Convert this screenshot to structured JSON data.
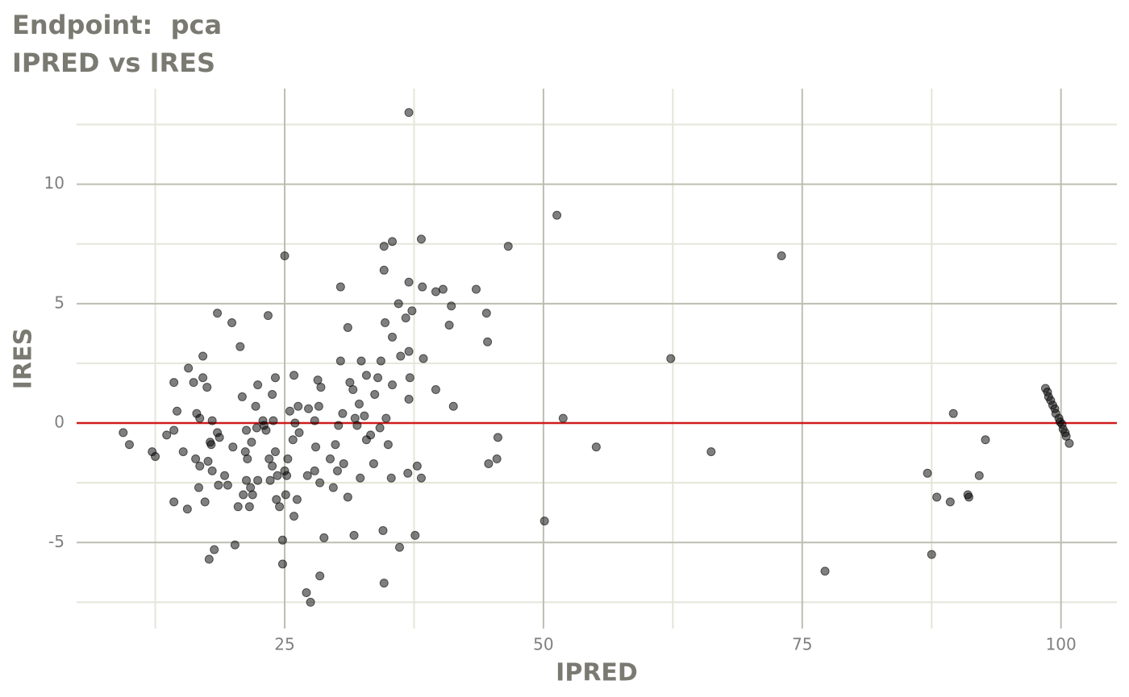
{
  "chart_data": {
    "type": "scatter",
    "title": "Endpoint:  pca",
    "subtitle": "IPRED vs IRES",
    "x_label": "IPRED",
    "y_label": "IRES",
    "xlim": [
      4.9,
      105.4
    ],
    "ylim": [
      -8.6,
      14.0
    ],
    "xticks": [
      25,
      50,
      75,
      100
    ],
    "yticks": [
      -5,
      0,
      5,
      10
    ],
    "xminor": [
      12.5,
      37.5,
      62.5,
      87.5
    ],
    "yminor": [
      -7.5,
      -2.5,
      2.5,
      7.5,
      12.5
    ],
    "hline": 0,
    "hline_color": "#d01c1c",
    "color": "#000000",
    "grid": true,
    "x": [
      9.4,
      10.0,
      12.2,
      12.5,
      13.6,
      14.3,
      14.3,
      14.6,
      14.3,
      15.2,
      15.6,
      15.7,
      16.2,
      16.4,
      16.5,
      16.7,
      16.8,
      16.8,
      17.1,
      17.1,
      17.3,
      17.5,
      17.6,
      17.7,
      17.8,
      17.9,
      18.0,
      18.0,
      18.2,
      18.5,
      18.5,
      18.6,
      18.7,
      19.2,
      19.5,
      19.9,
      20.0,
      20.2,
      20.5,
      20.7,
      20.9,
      21.0,
      21.2,
      21.3,
      21.3,
      21.4,
      21.6,
      21.7,
      21.8,
      21.9,
      22.2,
      22.3,
      22.4,
      22.4,
      22.9,
      23.0,
      23.2,
      23.4,
      23.5,
      23.6,
      23.8,
      23.8,
      23.9,
      24.1,
      24.1,
      24.2,
      24.3,
      24.5,
      24.8,
      24.8,
      25.0,
      25.0,
      25.1,
      25.2,
      25.3,
      25.5,
      25.8,
      25.9,
      25.9,
      26.0,
      26.2,
      26.3,
      26.4,
      27.1,
      27.2,
      27.3,
      27.5,
      27.9,
      27.9,
      28.0,
      28.2,
      28.3,
      28.4,
      28.5,
      28.4,
      28.8,
      29.4,
      29.7,
      29.9,
      30.1,
      30.2,
      30.4,
      30.4,
      30.6,
      30.7,
      31.1,
      31.1,
      31.3,
      31.6,
      31.7,
      31.8,
      32.0,
      32.2,
      32.3,
      32.4,
      32.7,
      32.9,
      32.9,
      33.3,
      33.6,
      33.7,
      34.0,
      34.2,
      34.3,
      34.5,
      34.6,
      34.6,
      34.6,
      34.7,
      34.8,
      35.0,
      35.3,
      35.4,
      35.4,
      35.4,
      36.0,
      36.1,
      36.2,
      36.7,
      36.9,
      37.0,
      37.0,
      37.0,
      37.0,
      37.1,
      37.3,
      37.6,
      37.8,
      38.2,
      38.2,
      38.3,
      38.4,
      39.6,
      39.6,
      40.3,
      40.9,
      41.1,
      41.3,
      43.5,
      44.5,
      44.6,
      44.7,
      45.5,
      45.6,
      46.6,
      50.1,
      51.3,
      51.9,
      55.1,
      62.3,
      66.2,
      73.0,
      77.2,
      87.1,
      87.5,
      88.0,
      89.3,
      89.6,
      91.0,
      91.1,
      92.1,
      92.7,
      98.5,
      98.7,
      98.8,
      99.0,
      99.2,
      99.4,
      99.5,
      99.8,
      99.9,
      100.1,
      100.2,
      100.4,
      100.5,
      100.8
    ],
    "y": [
      -0.4,
      -0.9,
      -1.2,
      -1.4,
      -0.5,
      -0.3,
      1.7,
      0.5,
      -3.3,
      -1.2,
      -3.6,
      2.3,
      1.7,
      -1.5,
      0.4,
      -2.7,
      -1.8,
      0.2,
      2.8,
      1.9,
      -3.3,
      1.5,
      -1.6,
      -5.7,
      -0.8,
      -0.9,
      -2.0,
      0.1,
      -5.3,
      4.6,
      -0.4,
      -2.6,
      -0.6,
      -2.2,
      -2.6,
      4.2,
      -1.0,
      -5.1,
      -3.5,
      3.2,
      1.1,
      -3.0,
      -1.2,
      -0.3,
      -2.4,
      -1.5,
      -3.5,
      -2.7,
      -0.8,
      -3.0,
      0.7,
      -0.2,
      -2.4,
      1.6,
      0.1,
      -0.1,
      -0.3,
      4.5,
      -1.5,
      -2.4,
      1.2,
      -1.8,
      0.1,
      1.9,
      -1.2,
      -3.2,
      -2.2,
      -3.5,
      -4.9,
      -5.9,
      7.0,
      -2.0,
      -3.0,
      -2.2,
      -1.5,
      0.5,
      -0.7,
      -3.9,
      2.0,
      0.0,
      -3.2,
      0.7,
      -0.4,
      -7.1,
      -2.2,
      0.6,
      -7.5,
      0.1,
      -2.0,
      -1.0,
      1.8,
      0.7,
      -2.5,
      1.5,
      -6.4,
      -4.8,
      -1.5,
      -2.7,
      -0.9,
      -2.0,
      -0.1,
      5.7,
      2.6,
      0.4,
      -1.7,
      4.0,
      -3.1,
      1.7,
      1.4,
      -4.7,
      0.2,
      -0.1,
      0.8,
      -2.3,
      2.6,
      0.3,
      -0.7,
      2.0,
      -0.5,
      -1.7,
      1.2,
      1.9,
      -0.2,
      2.6,
      -4.5,
      6.4,
      7.4,
      -6.7,
      4.2,
      0.2,
      -0.9,
      -2.3,
      1.6,
      3.6,
      7.6,
      5.0,
      -5.2,
      2.8,
      4.4,
      -2.1,
      13.0,
      5.9,
      3.0,
      1.0,
      1.9,
      4.7,
      -4.7,
      -1.8,
      7.7,
      -2.3,
      5.7,
      2.7,
      5.5,
      1.4,
      5.6,
      4.1,
      4.9,
      0.7,
      5.6,
      4.6,
      3.4,
      -1.7,
      -1.5,
      -0.6,
      7.4,
      -4.1,
      8.7,
      0.2,
      -1.0,
      2.7,
      -1.2,
      7.0,
      -6.2,
      -2.1,
      -5.5,
      -3.1,
      -3.3,
      0.4,
      -3.0,
      -3.1,
      -2.2,
      -0.7,
      1.45,
      1.3,
      1.1,
      0.95,
      0.75,
      0.6,
      0.4,
      0.2,
      0.05,
      -0.05,
      -0.25,
      -0.4,
      -0.55,
      -0.85
    ]
  }
}
